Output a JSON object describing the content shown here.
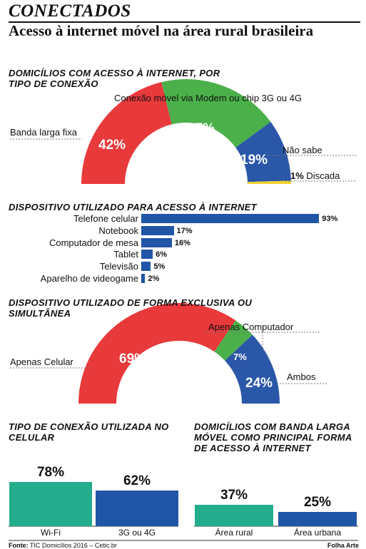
{
  "header": {
    "kicker": "CONECTADOS",
    "title": "Acesso à internet móvel na área rural brasileira"
  },
  "footer": {
    "source_label": "Fonte:",
    "source": "TIC Domicílios 2016 – Cetic.br",
    "credit": "Folha Arte"
  },
  "chart_data": [
    {
      "type": "pie",
      "title": "DOMICÍLIOS COM ACESSO À INTERNET, POR TIPO DE CONEXÃO",
      "slices": [
        {
          "label": "Banda larga fixa",
          "value": 42,
          "display": "42%",
          "color": "#e8393b"
        },
        {
          "label": "Conexão móvel via Modem ou chip 3G ou 4G",
          "value": 37,
          "display": "37%",
          "color": "#4bb04a"
        },
        {
          "label": "Não sabe",
          "value": 19,
          "display": "19%",
          "color": "#2b57a8"
        },
        {
          "label": "Discada",
          "value": 1,
          "display": "1%",
          "color": "#f2d22e"
        }
      ]
    },
    {
      "type": "bar",
      "title": "DISPOSITIVO UTILIZADO PARA ACESSO À INTERNET",
      "categories": [
        "Telefone celular",
        "Notebook",
        "Computador de mesa",
        "Tablet",
        "Televisão",
        "Aparelho de videogame"
      ],
      "values": [
        93,
        17,
        16,
        6,
        5,
        2
      ],
      "labels": [
        "93%",
        "17%",
        "16%",
        "6%",
        "5%",
        "2%"
      ],
      "color": "#2155a6"
    },
    {
      "type": "pie",
      "title": "DISPOSITIVO UTILIZADO DE FORMA EXCLUSIVA OU SIMULTÂNEA",
      "slices": [
        {
          "label": "Apenas Celular",
          "value": 69,
          "display": "69%",
          "color": "#e8393b"
        },
        {
          "label": "Apenas Computador",
          "value": 7,
          "display": "7%",
          "color": "#4bb04a"
        },
        {
          "label": "Ambos",
          "value": 24,
          "display": "24%",
          "color": "#2b57a8"
        }
      ]
    },
    {
      "type": "bar",
      "title": "TIPO DE CONEXÃO UTILIZADA NO CELULAR",
      "categories": [
        "Wi-Fi",
        "3G ou 4G"
      ],
      "values": [
        78,
        62
      ],
      "labels": [
        "78%",
        "62%"
      ],
      "colors": [
        "#23ad8d",
        "#2155a6"
      ]
    },
    {
      "type": "bar",
      "title": "DOMICÍLIOS COM BANDA LARGA MÓVEL COMO PRINCIPAL FORMA DE ACESSO À INTERNET",
      "categories": [
        "Área rural",
        "Área urbana"
      ],
      "values": [
        37,
        25
      ],
      "labels": [
        "37%",
        "25%"
      ],
      "colors": [
        "#23ad8d",
        "#2155a6"
      ]
    }
  ]
}
